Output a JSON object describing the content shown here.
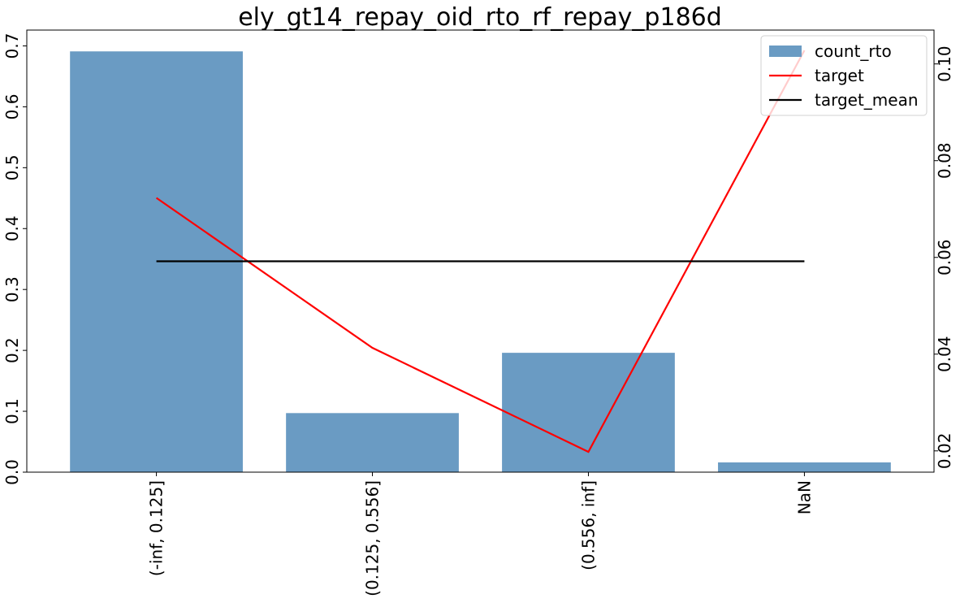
{
  "chart_data": {
    "type": "bar",
    "title": "ely_gt14_repay_oid_rto_rf_repay_p186d",
    "categories": [
      "(-inf, 0.125]",
      "(0.125, 0.556]",
      "(0.556, inf]",
      "NaN"
    ],
    "series": [
      {
        "name": "count_rto",
        "type": "bar",
        "axis": "left",
        "color": "#6a9bc3",
        "values": [
          0.691,
          0.097,
          0.196,
          0.016
        ]
      },
      {
        "name": "target",
        "type": "line",
        "axis": "right",
        "color": "#ff0000",
        "values": [
          0.0723,
          0.0413,
          0.0198,
          0.1028
        ]
      },
      {
        "name": "target_mean",
        "type": "line",
        "axis": "right",
        "color": "#000000",
        "values": [
          0.0592,
          0.0592,
          0.0592,
          0.0592
        ]
      }
    ],
    "y_left": {
      "ylim": [
        0,
        0.726
      ],
      "ticks": [
        0.0,
        0.1,
        0.2,
        0.3,
        0.4,
        0.5,
        0.6,
        0.7
      ],
      "tick_labels": [
        "0.0",
        "0.1",
        "0.2",
        "0.3",
        "0.4",
        "0.5",
        "0.6",
        "0.7"
      ]
    },
    "y_right": {
      "ylim": [
        0.0156,
        0.107
      ],
      "ticks": [
        0.02,
        0.04,
        0.06,
        0.08,
        0.1
      ],
      "tick_labels": [
        "0.02",
        "0.04",
        "0.06",
        "0.08",
        "0.10"
      ]
    },
    "xlabel": "",
    "ylabel": "",
    "grid": false,
    "legend_position": "top-right"
  }
}
